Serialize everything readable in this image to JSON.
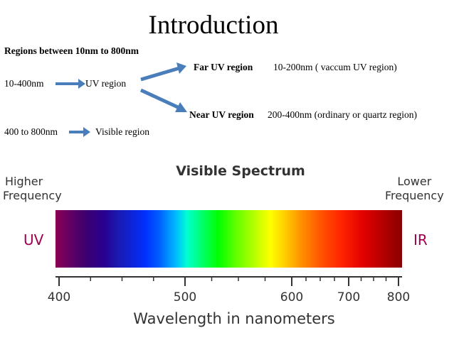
{
  "slide": {
    "title": "Introduction",
    "regions_heading": "Regions between 10nm to 800nm",
    "uv_range": "10-400nm",
    "uv_label": "UV region",
    "far_uv_label": "Far UV region",
    "far_uv_desc": "10-200nm ( vaccum UV region)",
    "near_uv_label": "Near UV region",
    "near_uv_desc": "200-400nm (ordinary or quartz region)",
    "visible_range": "400 to 800nm",
    "visible_label": "Visible region"
  },
  "spectrum": {
    "title": "Visible Spectrum",
    "higher_1": "Higher",
    "higher_2": "Frequency",
    "lower_1": "Lower",
    "lower_2": "Frequency",
    "left_end": "UV",
    "right_end": "IR",
    "axis_label": "Wavelength in nanometers",
    "ticks": [
      "400",
      "500",
      "600",
      "700",
      "800"
    ],
    "tick_values": [
      400,
      500,
      600,
      700,
      800
    ],
    "minor_ticks": [
      425,
      450,
      475,
      525,
      550,
      575,
      625,
      650,
      675,
      725,
      750,
      775
    ],
    "axis_range": [
      400,
      800
    ],
    "colors": {
      "end_labels": "#a0004f",
      "arrows": "#4a7ebb",
      "axis_text": "#333333"
    }
  }
}
